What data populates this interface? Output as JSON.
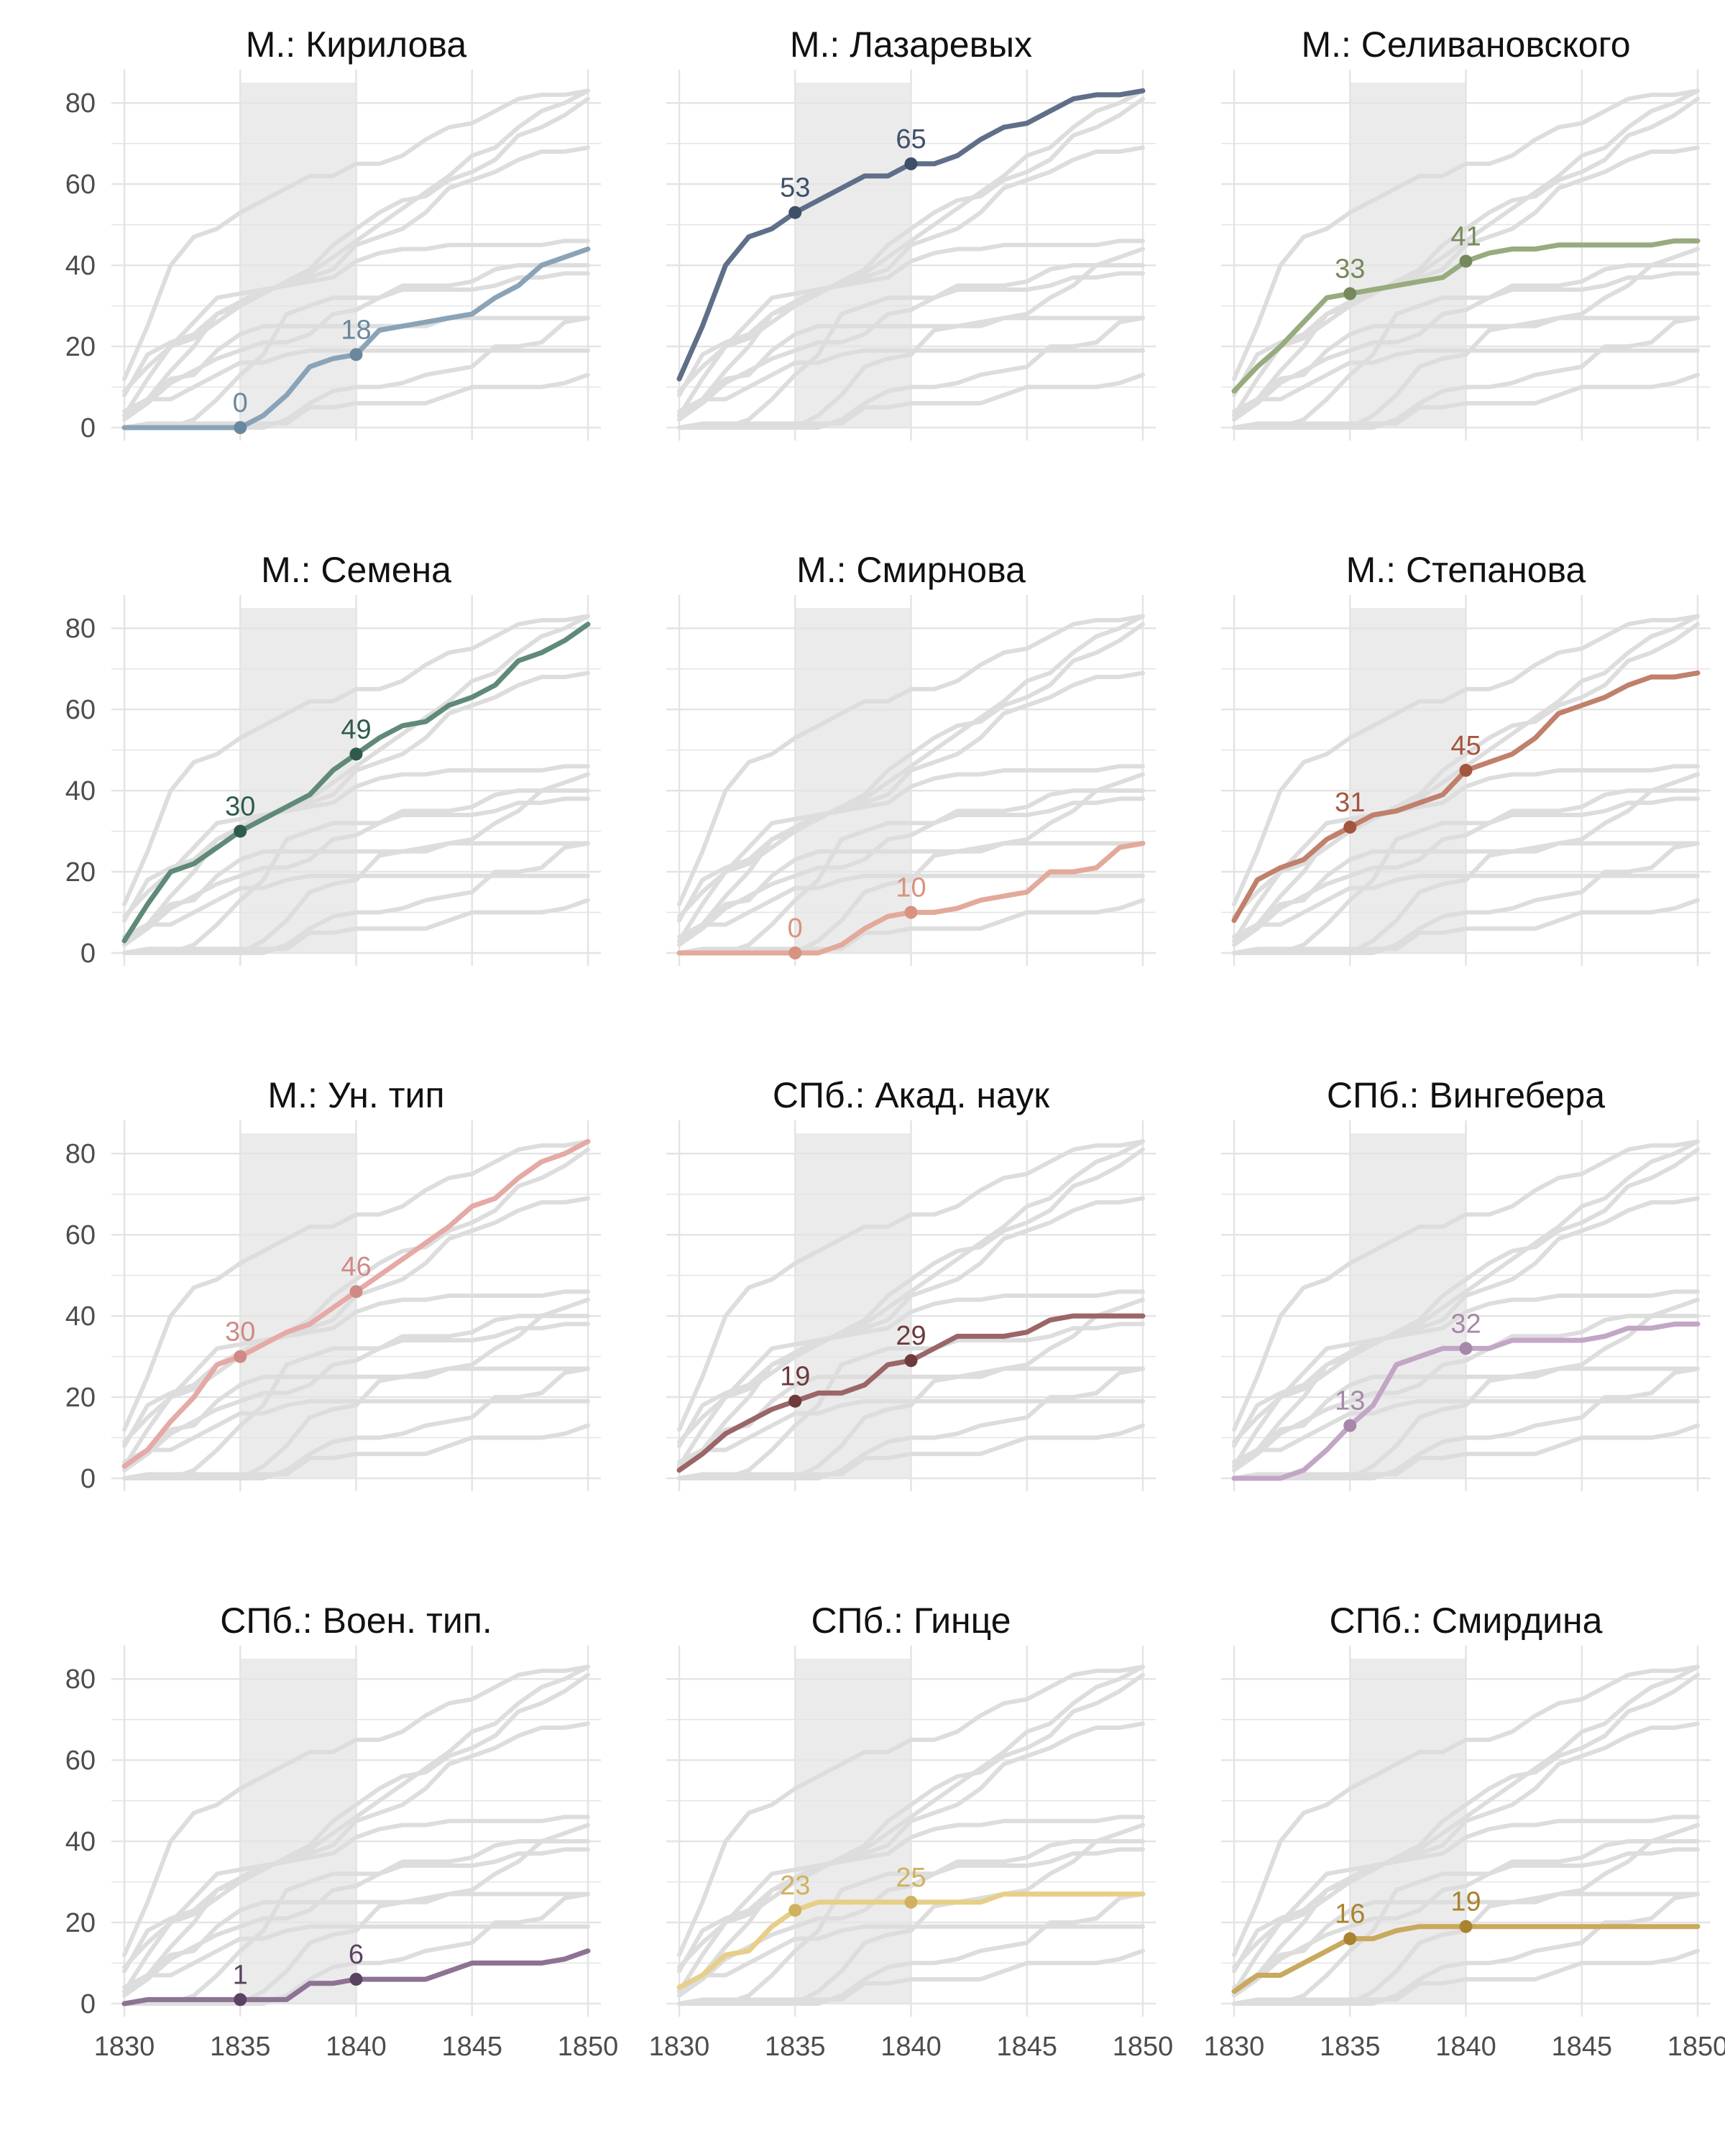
{
  "chart_data": {
    "type": "line",
    "facet_layout": {
      "columns": 3,
      "rows": 4
    },
    "x_ticks": [
      "1830",
      "1835",
      "1840",
      "1845",
      "1850"
    ],
    "y_ticks": [
      "0",
      "20",
      "40",
      "60",
      "80"
    ],
    "xlim": [
      1830,
      1850
    ],
    "ylim": [
      0,
      85
    ],
    "grid": true,
    "highlight_period": [
      1835,
      1840
    ],
    "background_series_color": "#dddddd",
    "panels": [
      {
        "title": "М.: Кирилова",
        "color": "#8aa3b7",
        "label_color": "#6b879d",
        "values": [
          0,
          0,
          0,
          0,
          0,
          0,
          3,
          8,
          15,
          17,
          18,
          24,
          25,
          26,
          27,
          28,
          32,
          35,
          40,
          42,
          44
        ],
        "points": [
          {
            "x": 1835,
            "y": 0,
            "label": "0"
          },
          {
            "x": 1840,
            "y": 18,
            "label": "18"
          }
        ]
      },
      {
        "title": "М.: Лазаревых",
        "color": "#5f6f89",
        "label_color": "#3f4f6a",
        "values": [
          12,
          25,
          40,
          47,
          49,
          53,
          56,
          59,
          62,
          62,
          65,
          65,
          67,
          71,
          74,
          75,
          78,
          81,
          82,
          82,
          83
        ],
        "points": [
          {
            "x": 1835,
            "y": 53,
            "label": "53"
          },
          {
            "x": 1840,
            "y": 65,
            "label": "65"
          }
        ]
      },
      {
        "title": "М.: Селивановского",
        "color": "#97ab7e",
        "label_color": "#76895c",
        "values": [
          9,
          15,
          20,
          26,
          32,
          33,
          34,
          35,
          36,
          37,
          41,
          43,
          44,
          44,
          45,
          45,
          45,
          45,
          45,
          46,
          46
        ],
        "points": [
          {
            "x": 1835,
            "y": 33,
            "label": "33"
          },
          {
            "x": 1840,
            "y": 41,
            "label": "41"
          }
        ]
      },
      {
        "title": "М.: Семена",
        "color": "#5f8a78",
        "label_color": "#2f5c4a",
        "values": [
          3,
          12,
          20,
          22,
          26,
          30,
          33,
          36,
          39,
          45,
          49,
          53,
          56,
          57,
          61,
          63,
          66,
          72,
          74,
          77,
          81
        ],
        "points": [
          {
            "x": 1835,
            "y": 30,
            "label": "30"
          },
          {
            "x": 1840,
            "y": 49,
            "label": "49"
          }
        ]
      },
      {
        "title": "М.: Смирнова",
        "color": "#e3a99a",
        "label_color": "#d8927f",
        "values": [
          0,
          0,
          0,
          0,
          0,
          0,
          0,
          2,
          6,
          9,
          10,
          10,
          11,
          13,
          14,
          15,
          20,
          20,
          21,
          26,
          27
        ],
        "points": [
          {
            "x": 1835,
            "y": 0,
            "label": "0"
          },
          {
            "x": 1840,
            "y": 10,
            "label": "10"
          }
        ]
      },
      {
        "title": "М.: Степанова",
        "color": "#c0806c",
        "label_color": "#a4553e",
        "values": [
          8,
          18,
          21,
          23,
          28,
          31,
          34,
          35,
          37,
          39,
          45,
          47,
          49,
          53,
          59,
          61,
          63,
          66,
          68,
          68,
          69
        ],
        "points": [
          {
            "x": 1835,
            "y": 31,
            "label": "31"
          },
          {
            "x": 1840,
            "y": 45,
            "label": "45"
          }
        ]
      },
      {
        "title": "М.: Ун. тип",
        "color": "#e5a9a6",
        "label_color": "#d08a86",
        "values": [
          3,
          7,
          14,
          20,
          28,
          30,
          33,
          36,
          38,
          42,
          46,
          50,
          54,
          58,
          62,
          67,
          69,
          74,
          78,
          80,
          83
        ],
        "points": [
          {
            "x": 1835,
            "y": 30,
            "label": "30"
          },
          {
            "x": 1840,
            "y": 46,
            "label": "46"
          }
        ]
      },
      {
        "title": "СПб.: Акад. наук",
        "color": "#9a6668",
        "label_color": "#6e3a3c",
        "values": [
          2,
          6,
          11,
          14,
          17,
          19,
          21,
          21,
          23,
          28,
          29,
          32,
          35,
          35,
          35,
          36,
          39,
          40,
          40,
          40,
          40
        ],
        "points": [
          {
            "x": 1835,
            "y": 19,
            "label": "19"
          },
          {
            "x": 1840,
            "y": 29,
            "label": "29"
          }
        ]
      },
      {
        "title": "СПб.: Вингебера",
        "color": "#c2a6c5",
        "label_color": "#a688a9",
        "values": [
          0,
          0,
          0,
          2,
          7,
          13,
          18,
          28,
          30,
          32,
          32,
          32,
          34,
          34,
          34,
          34,
          35,
          37,
          37,
          38,
          38
        ],
        "points": [
          {
            "x": 1835,
            "y": 13,
            "label": "13"
          },
          {
            "x": 1840,
            "y": 32,
            "label": "32"
          }
        ]
      },
      {
        "title": "СПб.: Воен. тип.",
        "color": "#8c7393",
        "label_color": "#5c4262",
        "values": [
          0,
          1,
          1,
          1,
          1,
          1,
          1,
          1,
          5,
          5,
          6,
          6,
          6,
          6,
          8,
          10,
          10,
          10,
          10,
          11,
          13
        ],
        "points": [
          {
            "x": 1835,
            "y": 1,
            "label": "1"
          },
          {
            "x": 1840,
            "y": 6,
            "label": "6"
          }
        ]
      },
      {
        "title": "СПб.: Гинце",
        "color": "#e7cf8a",
        "label_color": "#d0b25e",
        "values": [
          4,
          7,
          12,
          13,
          19,
          23,
          25,
          25,
          25,
          25,
          25,
          25,
          25,
          25,
          27,
          27,
          27,
          27,
          27,
          27,
          27
        ],
        "points": [
          {
            "x": 1835,
            "y": 23,
            "label": "23"
          },
          {
            "x": 1840,
            "y": 25,
            "label": "25"
          }
        ]
      },
      {
        "title": "СПб.: Смирдина",
        "color": "#c9a95f",
        "label_color": "#a9832f",
        "values": [
          3,
          7,
          7,
          10,
          13,
          16,
          16,
          18,
          19,
          19,
          19,
          19,
          19,
          19,
          19,
          19,
          19,
          19,
          19,
          19,
          19
        ],
        "points": [
          {
            "x": 1835,
            "y": 16,
            "label": "16"
          },
          {
            "x": 1840,
            "y": 19,
            "label": "19"
          }
        ]
      }
    ]
  }
}
